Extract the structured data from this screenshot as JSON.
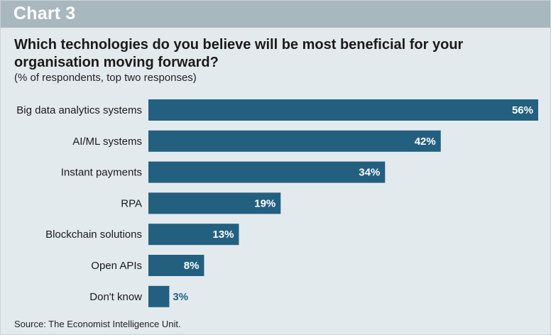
{
  "header": {
    "chart_label": "Chart 3",
    "title": "Which technologies do you believe will be most beneficial for your organisation moving forward?",
    "subtitle": "(% of respondents, top two responses)"
  },
  "footer": {
    "source": "Source: The Economist Intelligence Unit."
  },
  "colors": {
    "bar": "#236080",
    "background": "#e3eaee",
    "header_band": "#a9b7be",
    "value_inside": "#ffffff",
    "value_outside": "#236080"
  },
  "chart_data": {
    "type": "bar",
    "orientation": "horizontal",
    "title": "Which technologies do you believe will be most beneficial for your organisation moving forward?",
    "subtitle": "(% of respondents, top two responses)",
    "categories": [
      "Big data analytics systems",
      "AI/ML systems",
      "Instant payments",
      "RPA",
      "Blockchain solutions",
      "Open APIs",
      "Don't know"
    ],
    "values": [
      56,
      42,
      34,
      19,
      13,
      8,
      3
    ],
    "value_labels": [
      "56%",
      "42%",
      "34%",
      "19%",
      "13%",
      "8%",
      "3%"
    ],
    "xlim": [
      0,
      56
    ],
    "xlabel": "",
    "ylabel": "",
    "grid": false,
    "legend": "none"
  }
}
